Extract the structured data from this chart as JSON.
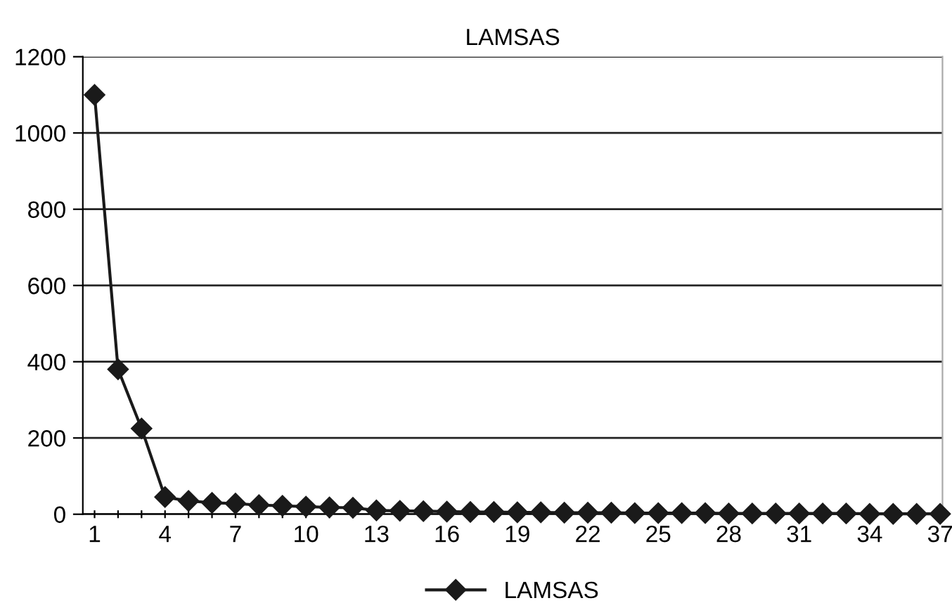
{
  "chart_data": {
    "type": "line",
    "title": "LAMSAS",
    "categories": [
      "1",
      null,
      null,
      "4",
      null,
      null,
      "7",
      null,
      null,
      "10",
      null,
      null,
      "13",
      null,
      null,
      "16",
      null,
      null,
      "19",
      null,
      null,
      "22",
      null,
      null,
      "25",
      null,
      null,
      "28",
      null,
      null,
      "31",
      null,
      null,
      "34",
      null,
      null,
      "37"
    ],
    "series": [
      {
        "name": "LAMSAS",
        "color": "#1a1a1a",
        "values": [
          1100,
          380,
          225,
          45,
          35,
          30,
          28,
          24,
          22,
          20,
          18,
          17,
          10,
          9,
          8,
          7,
          6,
          6,
          5,
          5,
          4,
          4,
          4,
          3,
          3,
          3,
          3,
          2,
          2,
          2,
          2,
          2,
          2,
          1,
          1,
          1,
          1
        ]
      }
    ],
    "ylim": [
      0,
      1200
    ],
    "yticks": [
      0,
      200,
      400,
      600,
      800,
      1000,
      1200
    ],
    "grid": "y",
    "legend": "bottom",
    "marker": "diamond",
    "line_style": "solid"
  }
}
